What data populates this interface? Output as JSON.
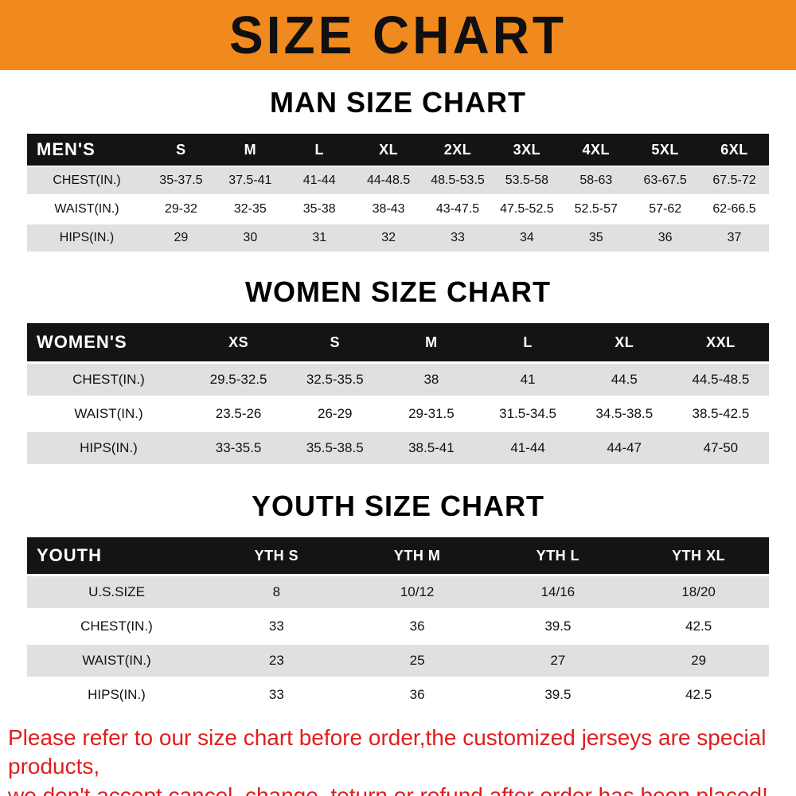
{
  "banner": {
    "title": "SIZE CHART"
  },
  "colors": {
    "banner_bg": "#f18a1e",
    "table_header_bg": "#141414",
    "row_shade": "#e0e0e0",
    "footer_text": "#e01d1d"
  },
  "man": {
    "heading": "MAN SIZE CHART",
    "label": "MEN'S",
    "columns": [
      "S",
      "M",
      "L",
      "XL",
      "2XL",
      "3XL",
      "4XL",
      "5XL",
      "6XL"
    ],
    "rows": [
      {
        "label": "CHEST(IN.)",
        "values": [
          "35-37.5",
          "37.5-41",
          "41-44",
          "44-48.5",
          "48.5-53.5",
          "53.5-58",
          "58-63",
          "63-67.5",
          "67.5-72"
        ]
      },
      {
        "label": "WAIST(IN.)",
        "values": [
          "29-32",
          "32-35",
          "35-38",
          "38-43",
          "43-47.5",
          "47.5-52.5",
          "52.5-57",
          "57-62",
          "62-66.5"
        ]
      },
      {
        "label": "HIPS(IN.)",
        "values": [
          "29",
          "30",
          "31",
          "32",
          "33",
          "34",
          "35",
          "36",
          "37"
        ]
      }
    ]
  },
  "women": {
    "heading": "WOMEN SIZE CHART",
    "label": "WOMEN'S",
    "columns": [
      "XS",
      "S",
      "M",
      "L",
      "XL",
      "XXL"
    ],
    "rows": [
      {
        "label": "CHEST(IN.)",
        "values": [
          "29.5-32.5",
          "32.5-35.5",
          "38",
          "41",
          "44.5",
          "44.5-48.5"
        ]
      },
      {
        "label": "WAIST(IN.)",
        "values": [
          "23.5-26",
          "26-29",
          "29-31.5",
          "31.5-34.5",
          "34.5-38.5",
          "38.5-42.5"
        ]
      },
      {
        "label": "HIPS(IN.)",
        "values": [
          "33-35.5",
          "35.5-38.5",
          "38.5-41",
          "41-44",
          "44-47",
          "47-50"
        ]
      }
    ]
  },
  "youth": {
    "heading": "YOUTH SIZE CHART",
    "label": "YOUTH",
    "columns": [
      "YTH S",
      "YTH M",
      "YTH L",
      "YTH XL"
    ],
    "rows": [
      {
        "label": "U.S.SIZE",
        "values": [
          "8",
          "10/12",
          "14/16",
          "18/20"
        ]
      },
      {
        "label": "CHEST(IN.)",
        "values": [
          "33",
          "36",
          "39.5",
          "42.5"
        ]
      },
      {
        "label": "WAIST(IN.)",
        "values": [
          "23",
          "25",
          "27",
          "29"
        ]
      },
      {
        "label": "HIPS(IN.)",
        "values": [
          "33",
          "36",
          "39.5",
          "42.5"
        ]
      }
    ]
  },
  "footer": {
    "line1": "Please refer to our size chart before order,the customized jerseys are special products,",
    "line2": "we don't accept cancel, change, teturn or refund after order has been placed!"
  }
}
